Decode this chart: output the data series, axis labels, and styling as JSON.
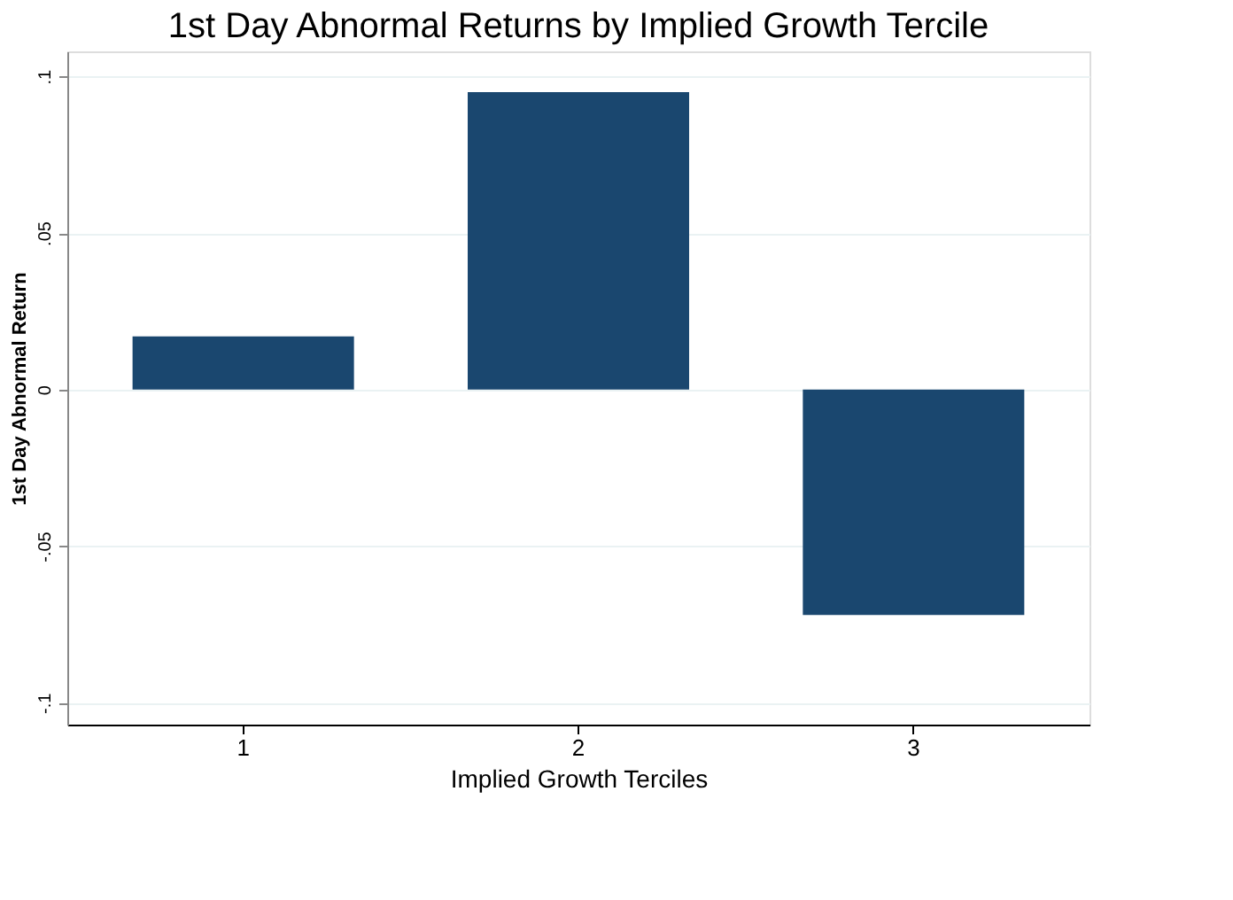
{
  "chart_data": {
    "type": "bar",
    "title": "1st Day Abnormal Returns by Implied Growth Tercile",
    "xlabel": "Implied Growth Terciles",
    "ylabel": "1st Day Abnormal Return",
    "categories": [
      "1",
      "2",
      "3"
    ],
    "series": [
      {
        "color": "#1a476f",
        "values": [
          0.017,
          0.095,
          -0.072
        ]
      }
    ],
    "ylim": [
      -0.107,
      0.108
    ],
    "yticks": [
      {
        "value": -0.1,
        "label": "-.1"
      },
      {
        "value": -0.05,
        "label": "-.05"
      },
      0,
      {
        "value": 0.05,
        "label": ".05"
      },
      {
        "value": 0.1,
        "label": ".1"
      }
    ],
    "grid": "y",
    "legend": false
  }
}
